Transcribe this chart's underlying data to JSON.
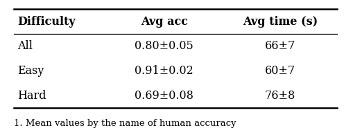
{
  "col_headers": [
    "Difficulty",
    "Avg acc",
    "Avg time (s)"
  ],
  "rows": [
    [
      "All",
      "0.80±0.05",
      "66±7"
    ],
    [
      "Easy",
      "0.91±0.02",
      "60±7"
    ],
    [
      "Hard",
      "0.69±0.08",
      "76±8"
    ]
  ],
  "figsize": [
    4.96,
    1.88
  ],
  "dpi": 100,
  "background_color": "#ffffff",
  "header_fontsize": 11.5,
  "cell_fontsize": 11.5,
  "caption_fontsize": 9.5,
  "caption": "1. Mean values by the name of human accuracy"
}
